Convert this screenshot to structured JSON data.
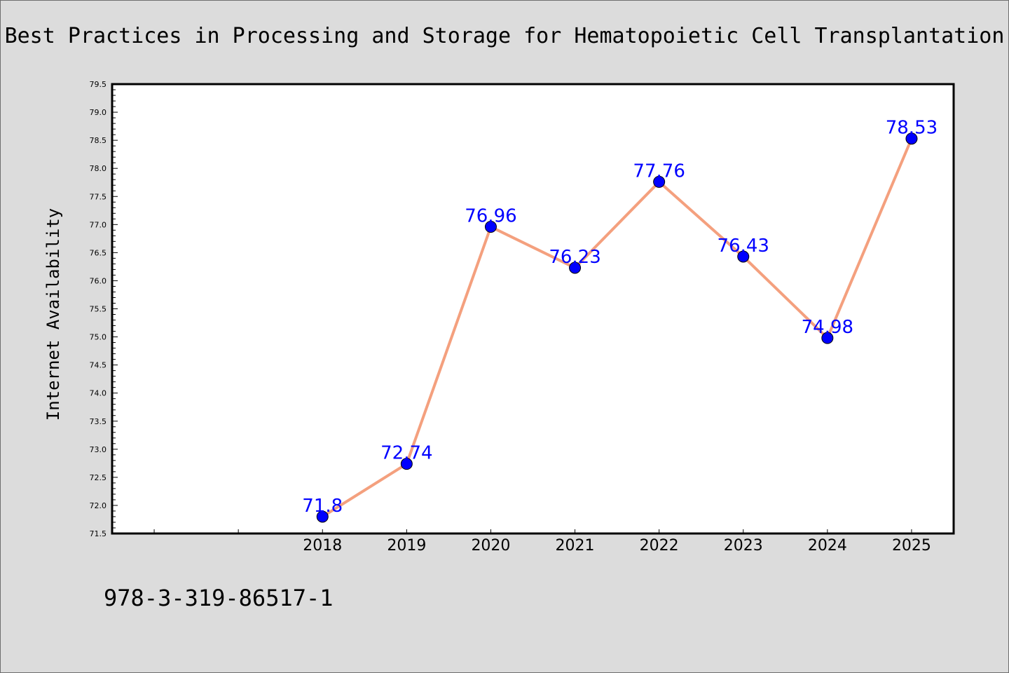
{
  "header": {
    "title": "Best Practices in Processing and Storage for Hematopoietic Cell Transplantation"
  },
  "footer": {
    "isbn": "978-3-319-86517-1"
  },
  "colors": {
    "line": "#f4a07e",
    "marker": "#0000ff",
    "label": "#0000ff",
    "background": "#dcdcdc",
    "plot_background": "#ffffff"
  },
  "chart_data": {
    "type": "line",
    "title": "Best Practices in Processing and Storage for Hematopoietic Cell Transplantation",
    "xlabel": "",
    "ylabel": "Internet Availability",
    "x": [
      2018,
      2019,
      2020,
      2021,
      2022,
      2023,
      2024,
      2025
    ],
    "values": [
      71.8,
      72.74,
      76.96,
      76.23,
      77.76,
      76.43,
      74.98,
      78.53
    ],
    "data_labels": [
      "71.8",
      "72.74",
      "76.96",
      "76.23",
      "77.76",
      "76.43",
      "74.98",
      "78.53"
    ],
    "xlim": [
      2015.5,
      2025.5
    ],
    "ylim": [
      71.5,
      79.5
    ],
    "y_ticks": [
      "71.5",
      "72.0",
      "72.5",
      "73.0",
      "73.5",
      "74.0",
      "74.5",
      "75.0",
      "75.5",
      "76.0",
      "76.5",
      "77.0",
      "77.5",
      "78.0",
      "78.5",
      "79.0",
      "79.5"
    ],
    "grid": false,
    "legend": "none"
  }
}
